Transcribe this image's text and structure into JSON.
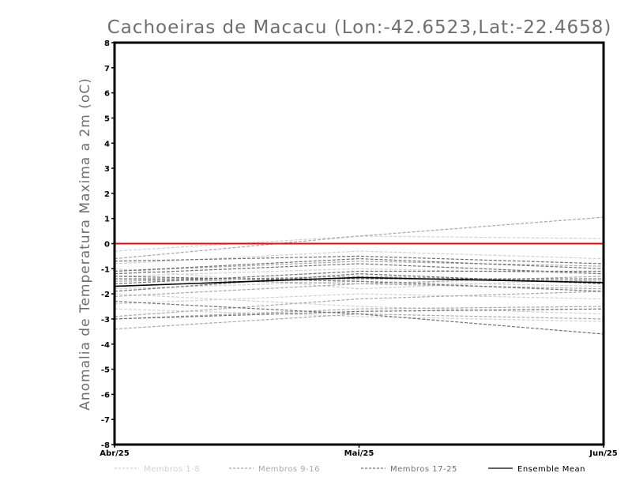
{
  "chart_data": {
    "type": "line",
    "title": "Cachoeiras de Macacu (Lon:-42.6523,Lat:-22.4658)",
    "ylabel": "Anomalia de Temperatura Maxima a 2m (oC)",
    "xlabel": "",
    "x": [
      "Abr/25",
      "Mai/25",
      "Jun/25"
    ],
    "ylim": [
      -8,
      8
    ],
    "yticks": [
      8,
      7,
      6,
      5,
      4,
      3,
      2,
      1,
      0,
      -1,
      -2,
      -3,
      -4,
      -5,
      -6,
      -7,
      -8
    ],
    "grid": false,
    "reference_line": {
      "y": 0,
      "color": "#ff0000"
    },
    "legend": {
      "placement": "bottom",
      "entries": [
        "Membros 1-8",
        "Membros 9-16",
        "Membros 17-25",
        "Ensemble Mean"
      ]
    },
    "groups": [
      {
        "name": "Membros 1-8",
        "color": "#d0d0d0",
        "style": "dashed",
        "members": [
          [
            -0.3,
            0.3,
            0.2
          ],
          [
            -0.8,
            -0.3,
            -0.6
          ],
          [
            -1.3,
            -1.0,
            -1.2
          ],
          [
            -1.8,
            -1.5,
            -1.7
          ],
          [
            -2.4,
            -2.0,
            -2.2
          ],
          [
            -2.0,
            -2.5,
            -2.8
          ],
          [
            -2.6,
            -2.9,
            -3.1
          ],
          [
            -1.0,
            -1.8,
            -1.4
          ]
        ]
      },
      {
        "name": "Membros 9-16",
        "color": "#a8a8a8",
        "style": "dashed",
        "members": [
          [
            -0.6,
            0.3,
            1.05
          ],
          [
            -1.1,
            -0.7,
            -0.9
          ],
          [
            -1.5,
            -1.3,
            -1.5
          ],
          [
            -2.1,
            -1.6,
            -1.3
          ],
          [
            -2.9,
            -2.2,
            -1.9
          ],
          [
            -3.0,
            -2.6,
            -2.5
          ],
          [
            -3.4,
            -2.8,
            -3.0
          ],
          [
            -1.4,
            -1.6,
            -1.8
          ]
        ]
      },
      {
        "name": "Membros 17-25",
        "color": "#707070",
        "style": "dashed",
        "members": [
          [
            -0.7,
            -0.5,
            -0.8
          ],
          [
            -1.1,
            -0.6,
            -1.0
          ],
          [
            -1.2,
            -0.8,
            -1.2
          ],
          [
            -1.4,
            -1.4,
            -1.4
          ],
          [
            -1.9,
            -1.2,
            -1.6
          ],
          [
            -2.3,
            -2.8,
            -3.6
          ],
          [
            -3.0,
            -2.7,
            -2.6
          ],
          [
            -1.3,
            -1.5,
            -1.9
          ],
          [
            -1.6,
            -1.1,
            -1.1
          ]
        ]
      },
      {
        "name": "Ensemble Mean",
        "color": "#000000",
        "style": "solid",
        "members": [
          [
            -1.7,
            -1.35,
            -1.55
          ]
        ]
      }
    ]
  }
}
